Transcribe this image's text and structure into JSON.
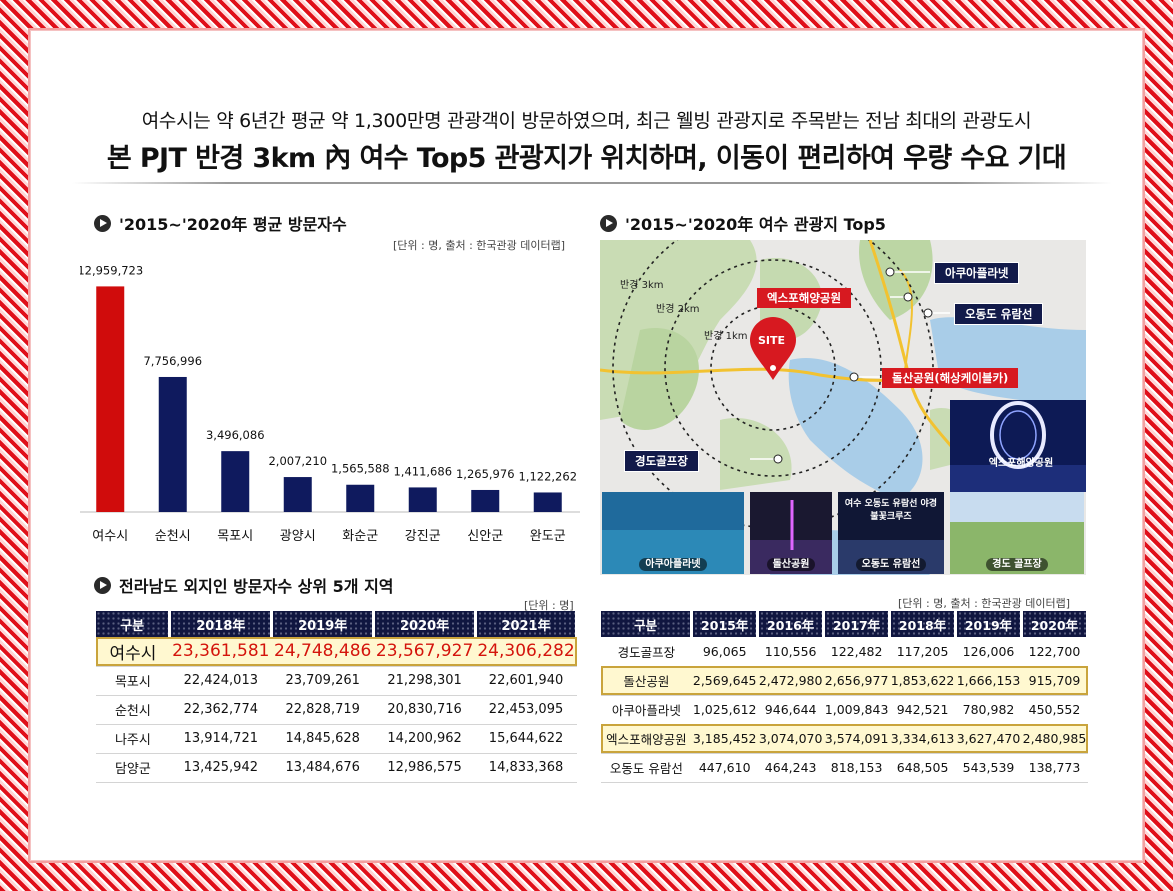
{
  "headline": {
    "line1": "여수시는 약 6년간 평균 약 1,300만명 관광객이 방문하였으며, 최근 웰빙 관광지로 주목받는 전남 최대의 관광도시",
    "line2": "본 PJT 반경 3km 內 여수 Top5 관광지가 위치하며, 이동이 편리하여 우량 수요 기대"
  },
  "visitors_section": {
    "title": "'2015~'2020年 평균 방문자수",
    "note": "[단위 : 명, 출처 : 한국관광 데이터랩]"
  },
  "chart_data": {
    "type": "bar",
    "categories": [
      "여수시",
      "순천시",
      "목포시",
      "광양시",
      "화순군",
      "강진군",
      "신안군",
      "완도군"
    ],
    "values": [
      12959723,
      7756996,
      3496086,
      2007210,
      1565588,
      1411686,
      1265976,
      1122262
    ],
    "value_labels": [
      "12,959,723",
      "7,756,996",
      "3,496,086",
      "2,007,210",
      "1,565,588",
      "1,411,686",
      "1,265,976",
      "1,122,262"
    ],
    "colors": [
      "#d00c0c",
      "#0f1a5e",
      "#0f1a5e",
      "#0f1a5e",
      "#0f1a5e",
      "#0f1a5e",
      "#0f1a5e",
      "#0f1a5e"
    ],
    "ylim": [
      0,
      13500000
    ]
  },
  "foreign_section": {
    "title": "전라남도 외지인 방문자수 상위 5개 지역",
    "note": "[단위 : 명]",
    "headers": [
      "구분",
      "2018年",
      "2019年",
      "2020年",
      "2021年"
    ],
    "rows": [
      [
        "여수시",
        "23,361,581",
        "24,748,486",
        "23,567,927",
        "24,306,282"
      ],
      [
        "목포시",
        "22,424,013",
        "23,709,261",
        "21,298,301",
        "22,601,940"
      ],
      [
        "순천시",
        "22,362,774",
        "22,828,719",
        "20,830,716",
        "22,453,095"
      ],
      [
        "나주시",
        "13,914,721",
        "14,845,628",
        "14,200,962",
        "15,644,622"
      ],
      [
        "담양군",
        "13,425,942",
        "13,484,676",
        "12,986,575",
        "14,833,368"
      ]
    ]
  },
  "top5_section": {
    "title": "'2015~'2020年 여수 관광지 Top5",
    "note": "[단위 : 명, 출처 : 한국관광 데이터랩]",
    "headers": [
      "구분",
      "2015年",
      "2016年",
      "2017年",
      "2018年",
      "2019年",
      "2020年"
    ],
    "rows": [
      [
        "경도골프장",
        "96,065",
        "110,556",
        "122,482",
        "117,205",
        "126,006",
        "122,700"
      ],
      [
        "돌산공원",
        "2,569,645",
        "2,472,980",
        "2,656,977",
        "1,853,622",
        "1,666,153",
        "915,709"
      ],
      [
        "아쿠아플라넷",
        "1,025,612",
        "946,644",
        "1,009,843",
        "942,521",
        "780,982",
        "450,552"
      ],
      [
        "엑스포해양공원",
        "3,185,452",
        "3,074,070",
        "3,574,091",
        "3,334,613",
        "3,627,470",
        "2,480,985"
      ],
      [
        "오동도 유람선",
        "447,610",
        "464,243",
        "818,153",
        "648,505",
        "543,539",
        "138,773"
      ]
    ]
  },
  "map": {
    "site": "SITE",
    "radius": [
      "반경 3km",
      "반경 2km",
      "반경 1km"
    ],
    "labels": {
      "aqua": "아쿠아플라넷",
      "expo": "엑스포해양공원",
      "odongdo": "오동도 유람선",
      "dolsan": "돌산공원(해상케이블카)",
      "golf": "경도골프장"
    },
    "inset_caption": "엑스포해양공원",
    "photos": [
      "아쿠아플라넷",
      "돌산공원",
      "여수 오동도 유람선 야경불꽃크루즈",
      "오동도 유람선",
      "경도 골프장"
    ]
  }
}
